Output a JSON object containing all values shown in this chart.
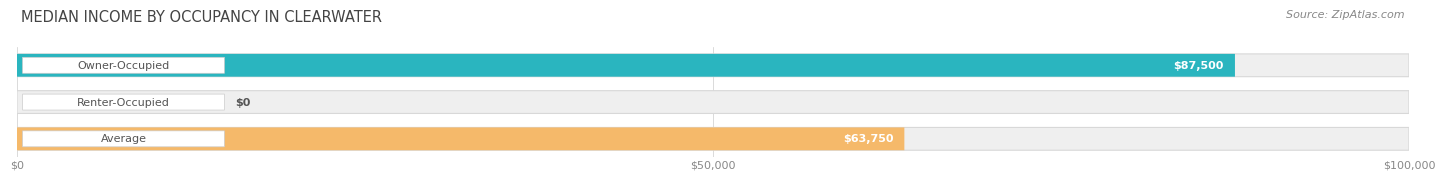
{
  "title": "MEDIAN INCOME BY OCCUPANCY IN CLEARWATER",
  "source": "Source: ZipAtlas.com",
  "categories": [
    "Owner-Occupied",
    "Renter-Occupied",
    "Average"
  ],
  "values": [
    87500,
    0,
    63750
  ],
  "value_labels": [
    "$87,500",
    "$0",
    "$63,750"
  ],
  "bar_colors": [
    "#2ab5bf",
    "#c4a8d6",
    "#f5b96a"
  ],
  "bar_bg_color": "#efefef",
  "bar_bg_edge_color": "#d8d8d8",
  "xlim_max": 100000,
  "xticks": [
    0,
    50000,
    100000
  ],
  "xtick_labels": [
    "$0",
    "$50,000",
    "$100,000"
  ],
  "title_fontsize": 10.5,
  "source_fontsize": 8,
  "tick_fontsize": 8,
  "bar_label_fontsize": 8,
  "cat_label_fontsize": 8,
  "bar_height": 0.62,
  "bar_spacing": 1.0,
  "background_color": "#ffffff",
  "pill_bg": "#ffffff",
  "pill_edge": "#cccccc",
  "cat_label_color": "#555555",
  "value_label_color_inside": "#ffffff",
  "value_label_color_outside": "#555555",
  "tick_color": "#888888",
  "grid_color": "#cccccc",
  "title_color": "#444444",
  "source_color": "#888888"
}
